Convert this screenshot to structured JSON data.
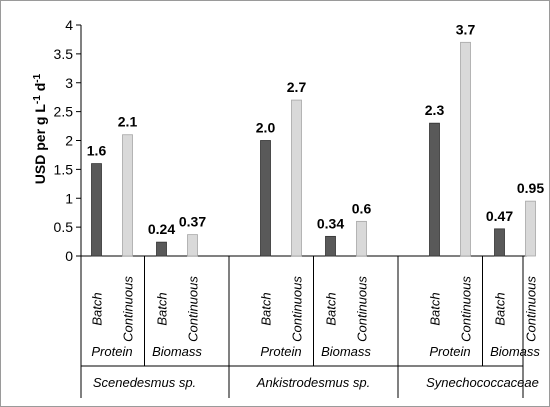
{
  "chart_data": {
    "type": "bar",
    "ylabel": "USD per g L",
    "ylabel_sup1": "-1",
    "ylabel_mid": " d",
    "ylabel_sup2": "-1",
    "ylim": [
      0,
      4
    ],
    "yticks": [
      "0",
      "0.5",
      "1",
      "1.5",
      "2",
      "2.5",
      "3",
      "3.5",
      "4"
    ],
    "grid": false,
    "legend": "none",
    "colors": {
      "batch": "#595959",
      "continuous": "#d9d9d9",
      "bar_stroke": "#333333",
      "continuous_stroke": "#a6a6a6"
    },
    "groups": [
      {
        "organism": "Scenedesmus sp.",
        "subgroups": [
          {
            "product": "Protein",
            "bars": [
              {
                "mode": "Batch",
                "value": 1.6,
                "label": "1.6"
              },
              {
                "mode": "Continuous",
                "value": 2.1,
                "label": "2.1"
              }
            ]
          },
          {
            "product": "Biomass",
            "bars": [
              {
                "mode": "Batch",
                "value": 0.24,
                "label": "0.24"
              },
              {
                "mode": "Continuous",
                "value": 0.37,
                "label": "0.37"
              }
            ]
          }
        ]
      },
      {
        "organism": "Ankistrodesmus sp.",
        "subgroups": [
          {
            "product": "Protein",
            "bars": [
              {
                "mode": "Batch",
                "value": 2.0,
                "label": "2.0"
              },
              {
                "mode": "Continuous",
                "value": 2.7,
                "label": "2.7"
              }
            ]
          },
          {
            "product": "Biomass",
            "bars": [
              {
                "mode": "Batch",
                "value": 0.34,
                "label": "0.34"
              },
              {
                "mode": "Continuous",
                "value": 0.6,
                "label": "0.6"
              }
            ]
          }
        ]
      },
      {
        "organism": "Synechococcaceae",
        "subgroups": [
          {
            "product": "Protein",
            "bars": [
              {
                "mode": "Batch",
                "value": 2.3,
                "label": "2.3"
              },
              {
                "mode": "Continuous",
                "value": 3.7,
                "label": "3.7"
              }
            ]
          },
          {
            "product": "Biomass",
            "bars": [
              {
                "mode": "Batch",
                "value": 0.47,
                "label": "0.47"
              },
              {
                "mode": "Continuous",
                "value": 0.95,
                "label": "0.95"
              }
            ]
          }
        ]
      }
    ]
  }
}
